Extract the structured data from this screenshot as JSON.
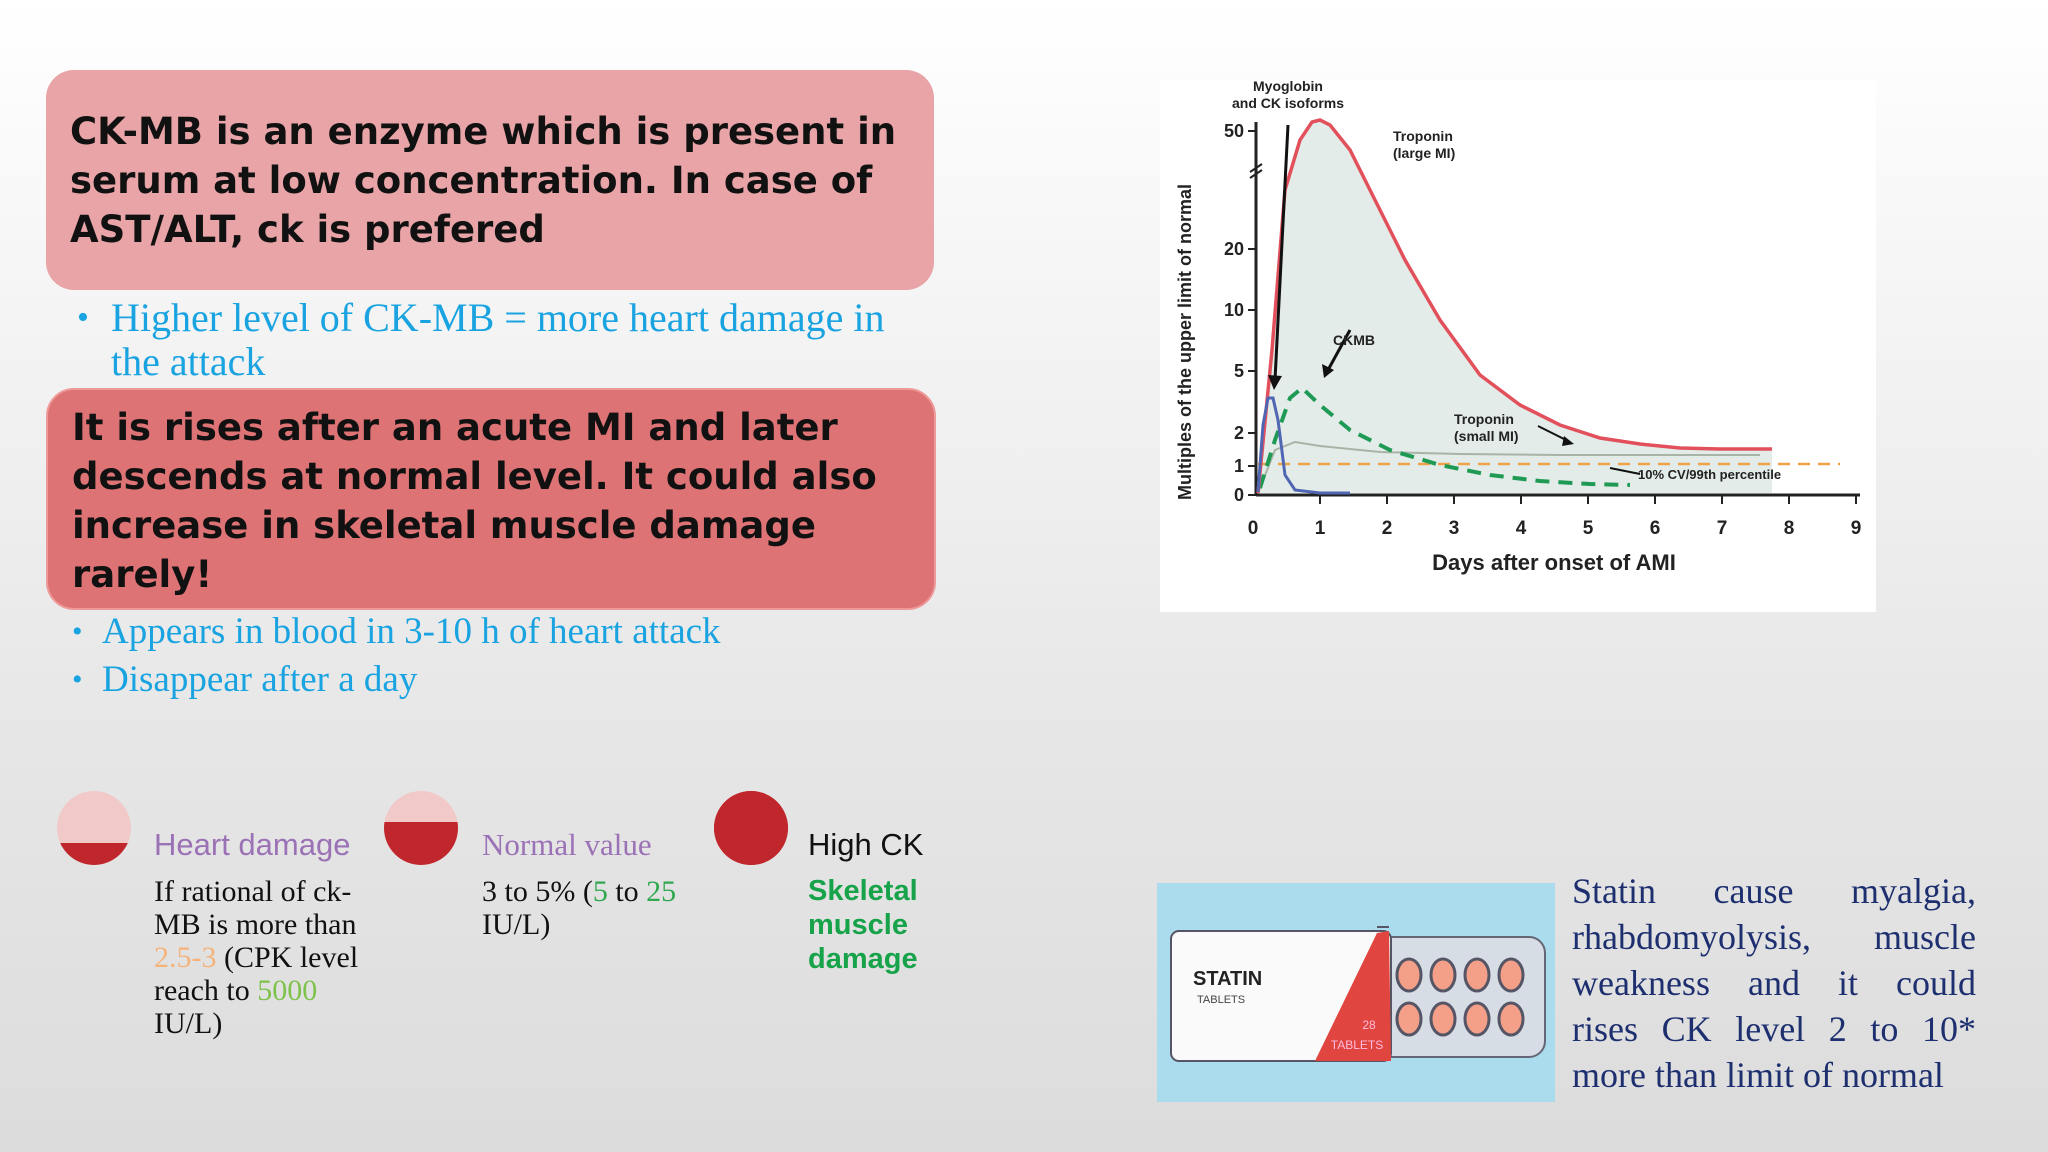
{
  "box1": {
    "text": "CK-MB is an enzyme which is present in serum at low concentration. In case of AST/ALT, ck is prefered"
  },
  "bullet1": {
    "text": "Higher level of CK-MB = more heart damage in the attack"
  },
  "box2": {
    "text": "It is rises after an acute MI and later descends at normal level. It could also increase in skeletal muscle damage rarely!"
  },
  "bullet2": {
    "text": "Appears in blood in 3-10 h of heart attack"
  },
  "bullet3": {
    "text": "Disappear after a day"
  },
  "items": [
    {
      "title": "Heart damage",
      "title_color": "#9b72b6",
      "fill_fraction": 0.35,
      "desc_a": "If rational of ck-MB is more than ",
      "desc_hl1": "2.5-3",
      "desc_b": " (CPK level reach to ",
      "desc_hl2": "5000",
      "desc_c": " IU/L)"
    },
    {
      "title": "Normal value",
      "title_color": "#9b72b6",
      "fill_fraction": 0.6,
      "desc_a": "3 to 5% (",
      "desc_hl1": "5",
      "desc_b": " to ",
      "desc_hl2": "25",
      "desc_c": " IU/L)"
    },
    {
      "title": "High CK",
      "title_color": "#111111",
      "fill_fraction": 1.0,
      "desc_line1": "Skeletal",
      "desc_line2": "muscle",
      "desc_line3": "damage"
    }
  ],
  "chart": {
    "ylabel": "Multiples of the upper limit of normal",
    "xlabel": "Days after onset of AMI",
    "yticks": [
      "0",
      "1",
      "2",
      "5",
      "10",
      "20",
      "50"
    ],
    "xticks": [
      "0",
      "1",
      "2",
      "3",
      "4",
      "5",
      "6",
      "7",
      "8",
      "9"
    ],
    "ann_myo1": "Myoglobin",
    "ann_myo2": "and CK isoforms",
    "ann_trop_large1": "Troponin",
    "ann_trop_large2": "(large MI)",
    "ann_ckmb": "CKMB",
    "ann_trop_small1": "Troponin",
    "ann_trop_small2": "(small MI)",
    "ann_pct": "10% CV/99th percentile"
  },
  "statin_pack": {
    "brand": "STATIN",
    "sub": "TABLETS",
    "count": "28",
    "count_label": "TABLETS"
  },
  "statin_text": {
    "line1": "Statin cause myalgia,",
    "line2": "rhabdomyolysis, muscle",
    "line3": "weakness and it could",
    "line4": "rises CK level 2 to 10*",
    "line5": "more than limit of normal"
  }
}
